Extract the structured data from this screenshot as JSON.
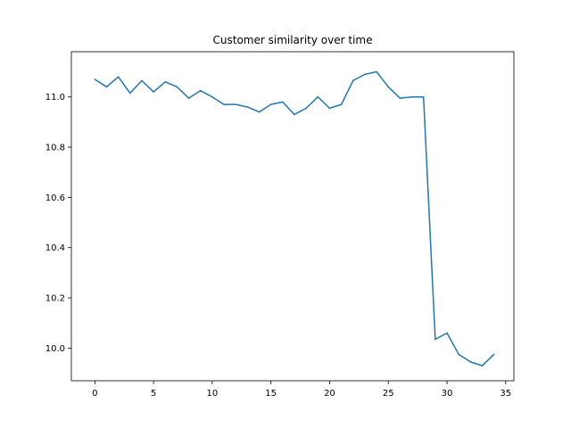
{
  "chart_data": {
    "type": "line",
    "title": "Customer similarity over time",
    "xlabel": "",
    "ylabel": "",
    "xlim": [
      -2.0,
      35.7
    ],
    "ylim": [
      9.87,
      11.18
    ],
    "xticks": [
      0,
      5,
      10,
      15,
      20,
      25,
      30,
      35
    ],
    "yticks": [
      10.0,
      10.2,
      10.4,
      10.6,
      10.8,
      11.0
    ],
    "grid": false,
    "line_color": "#1f77b4",
    "series": [
      {
        "x": [
          0,
          1,
          2,
          3,
          4,
          5,
          6,
          7,
          8,
          9,
          10,
          11,
          12,
          13,
          14,
          15,
          16,
          17,
          18,
          19,
          20,
          21,
          22,
          23,
          24,
          25,
          26,
          27,
          28,
          29,
          30,
          31,
          32,
          33,
          34
        ],
        "values": [
          11.07,
          11.04,
          11.08,
          11.015,
          11.065,
          11.02,
          11.06,
          11.04,
          10.995,
          11.025,
          11.0,
          10.97,
          10.97,
          10.96,
          10.94,
          10.97,
          10.98,
          10.93,
          10.955,
          11.0,
          10.955,
          10.97,
          11.065,
          11.09,
          11.1,
          11.04,
          10.995,
          11.0,
          11.0,
          10.035,
          10.06,
          9.975,
          9.945,
          9.93,
          9.975
        ]
      }
    ]
  }
}
